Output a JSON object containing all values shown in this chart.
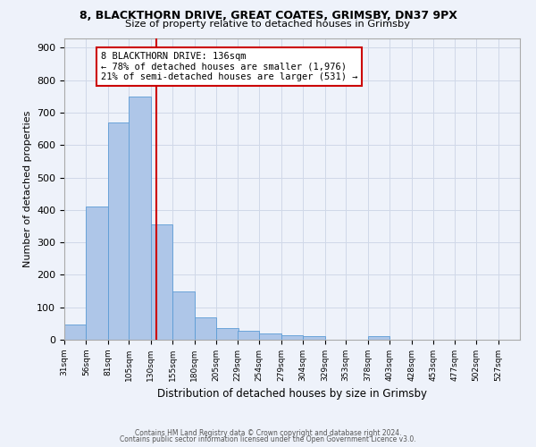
{
  "title1": "8, BLACKTHORN DRIVE, GREAT COATES, GRIMSBY, DN37 9PX",
  "title2": "Size of property relative to detached houses in Grimsby",
  "xlabel": "Distribution of detached houses by size in Grimsby",
  "ylabel": "Number of detached properties",
  "footer1": "Contains HM Land Registry data © Crown copyright and database right 2024.",
  "footer2": "Contains public sector information licensed under the Open Government Licence v3.0.",
  "annotation_line1": "8 BLACKTHORN DRIVE: 136sqm",
  "annotation_line2": "← 78% of detached houses are smaller (1,976)",
  "annotation_line3": "21% of semi-detached houses are larger (531) →",
  "property_size": 136,
  "bar_edges": [
    31,
    56,
    81,
    105,
    130,
    155,
    180,
    205,
    229,
    254,
    279,
    304,
    329,
    353,
    378,
    403,
    428,
    453,
    477,
    502,
    527
  ],
  "bar_heights": [
    47,
    410,
    670,
    750,
    355,
    148,
    70,
    35,
    27,
    18,
    15,
    10,
    0,
    0,
    10,
    0,
    0,
    0,
    0,
    0,
    0
  ],
  "bar_color": "#aec6e8",
  "bar_edge_color": "#5b9bd5",
  "vline_color": "#cc0000",
  "vline_x": 136,
  "annotation_box_color": "#ffffff",
  "annotation_box_edge_color": "#cc0000",
  "grid_color": "#d0d8e8",
  "background_color": "#eef2fa",
  "ylim": [
    0,
    930
  ],
  "yticks": [
    0,
    100,
    200,
    300,
    400,
    500,
    600,
    700,
    800,
    900
  ]
}
